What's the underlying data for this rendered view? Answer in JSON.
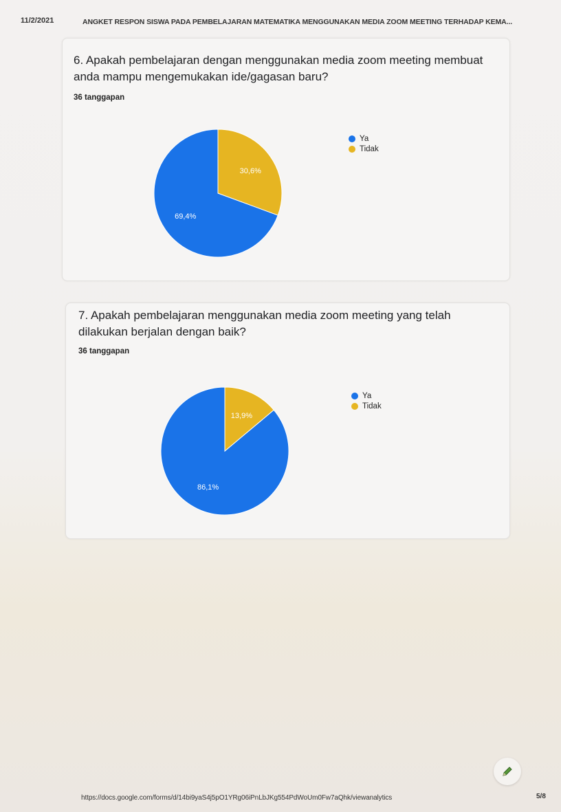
{
  "header": {
    "date": "11/2/2021",
    "title": "ANGKET RESPON SISWA PADA PEMBELAJARAN MATEMATIKA MENGGUNAKAN MEDIA ZOOM MEETING TERHADAP KEMA..."
  },
  "questions": [
    {
      "title": "6. Apakah pembelajaran dengan menggunakan media zoom meeting membuat anda mampu mengemukakan ide/gagasan baru?",
      "count": "36 tanggapan"
    },
    {
      "title": "7. Apakah pembelajaran menggunakan media zoom meeting yang telah dilakukan berjalan dengan baik?",
      "count": "36 tanggapan"
    }
  ],
  "chart_data": [
    {
      "type": "pie",
      "categories": [
        "Ya",
        "Tidak"
      ],
      "values": [
        69.4,
        30.6
      ],
      "labels": [
        "69,4%",
        "30,6%"
      ],
      "colors": [
        "#1a73e8",
        "#e6b522"
      ],
      "legend": "right"
    },
    {
      "type": "pie",
      "categories": [
        "Ya",
        "Tidak"
      ],
      "values": [
        86.1,
        13.9
      ],
      "labels": [
        "86,1%",
        "13,9%"
      ],
      "colors": [
        "#1a73e8",
        "#e6b522"
      ],
      "legend": "right"
    }
  ],
  "icons": {
    "edit": "pencil-icon"
  },
  "footer": {
    "url": "https://docs.google.com/forms/d/14bi9yaS4j5pO1YRg06iPnLbJKg554PdWoUm0Fw7aQhk/viewanalytics",
    "page": "5/8"
  }
}
